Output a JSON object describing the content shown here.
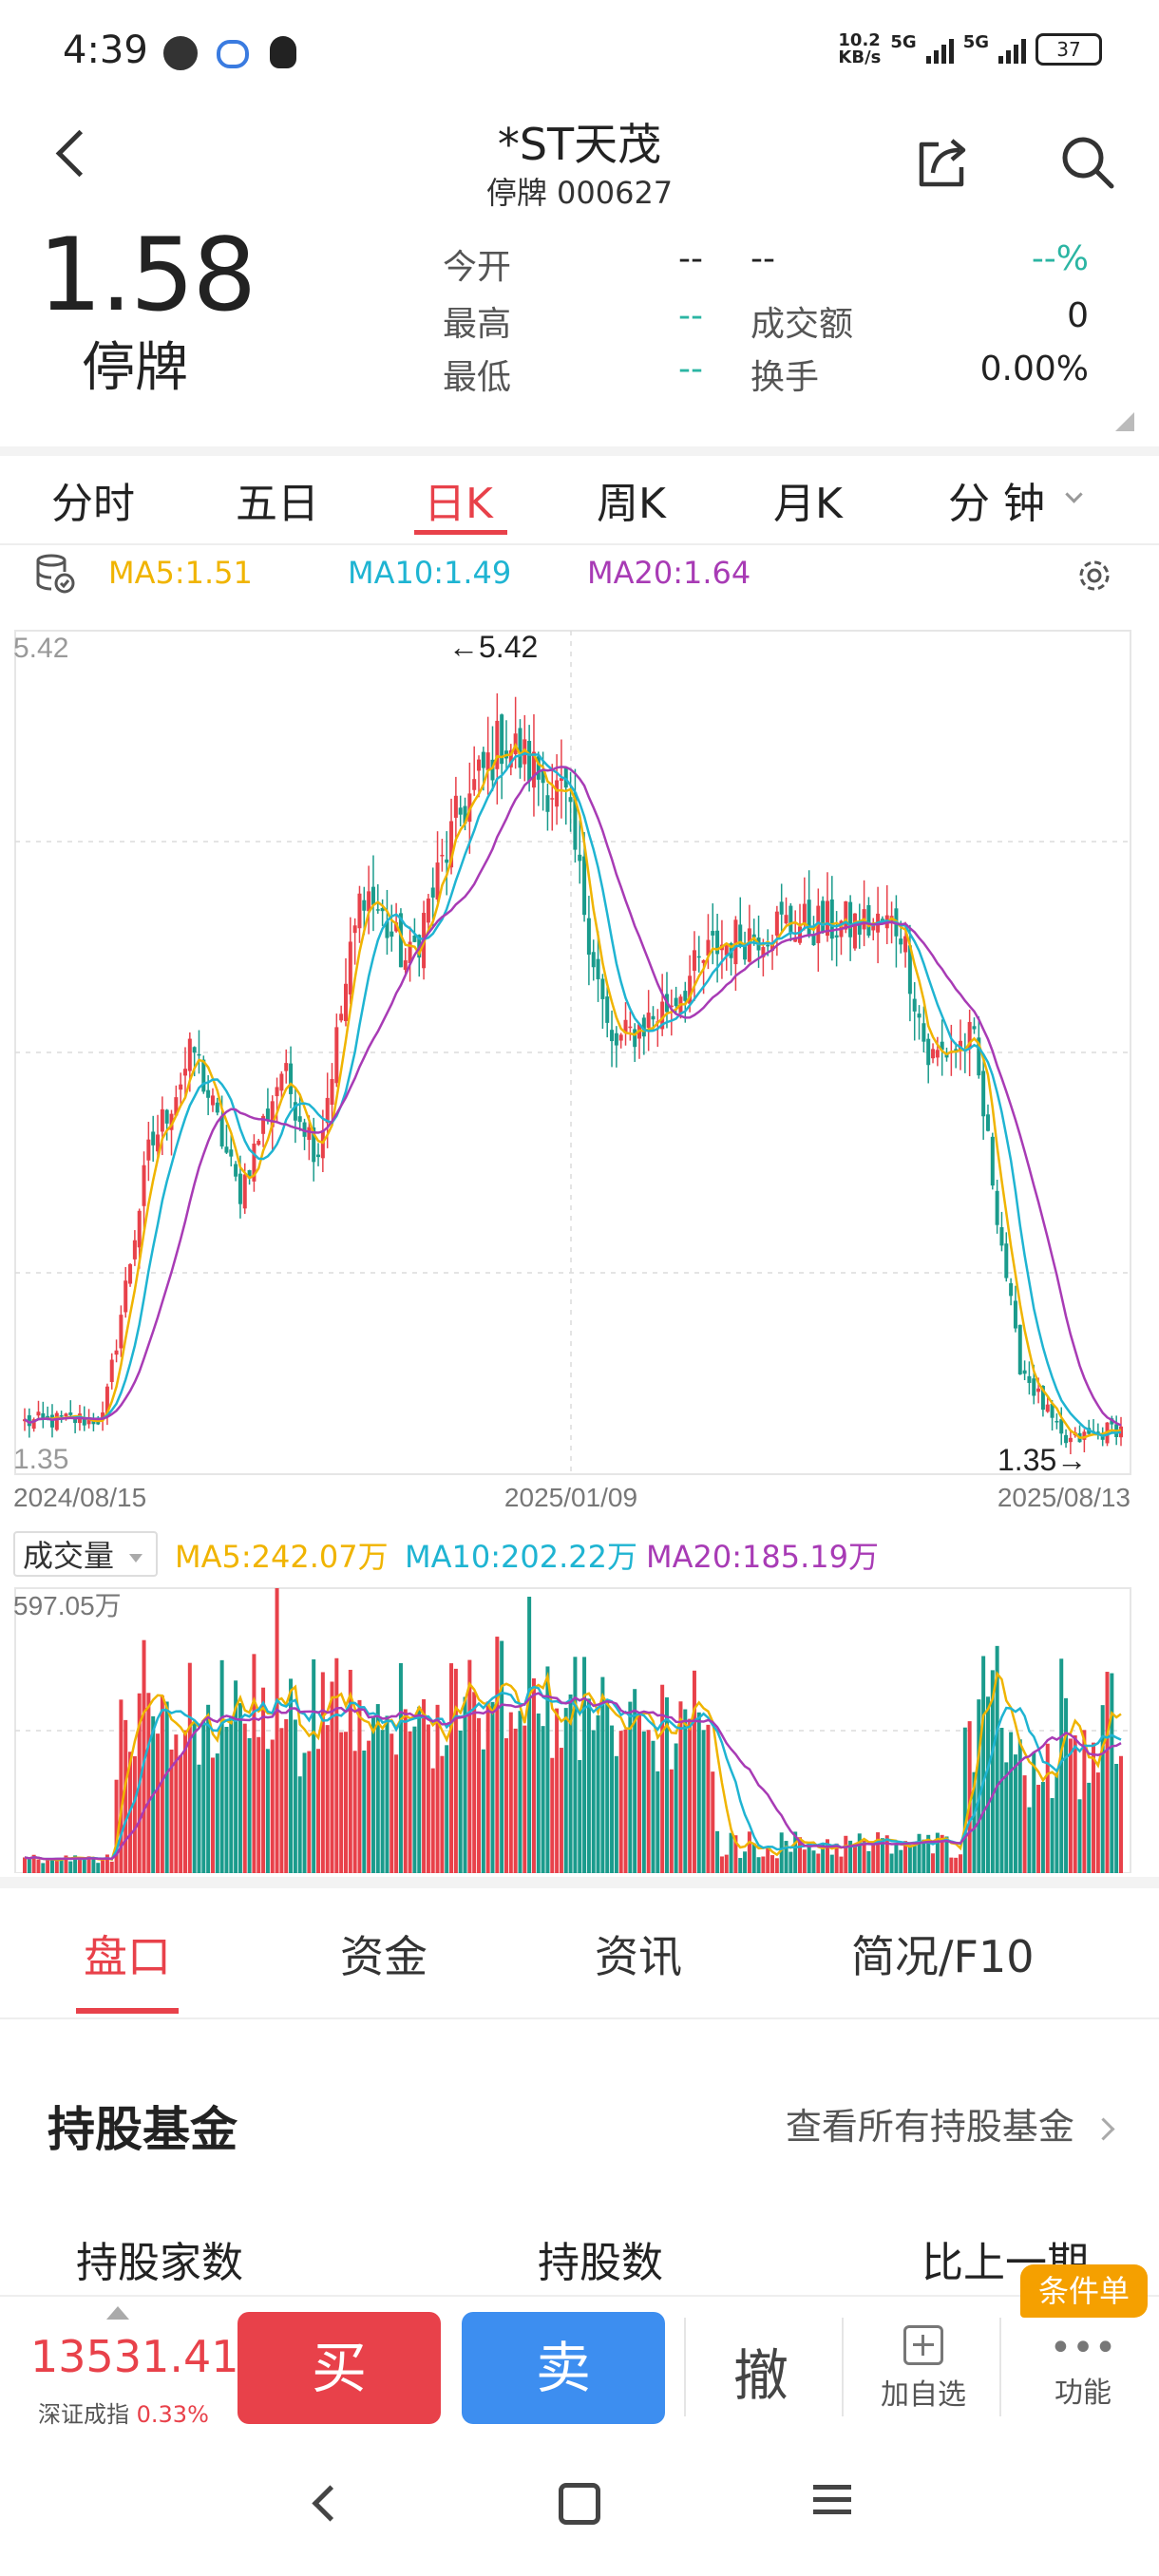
{
  "status_bar": {
    "time": "4:39",
    "speed": "10.2",
    "speed_unit": "KB/s",
    "net1": "5G",
    "net2": "5G",
    "battery": "37"
  },
  "header": {
    "name": "*ST天茂",
    "status_code": "停牌 000627"
  },
  "quote": {
    "price": "1.58",
    "status": "停牌",
    "rows": [
      {
        "label1": "今开",
        "val1": "--",
        "label2": "--",
        "val2": "--%"
      },
      {
        "label1": "最高",
        "val1": "--",
        "label2": "成交额",
        "val2": "0"
      },
      {
        "label1": "最低",
        "val1": "--",
        "label2": "换手",
        "val2": "0.00%"
      }
    ]
  },
  "kline_tabs": [
    "分时",
    "五日",
    "日K",
    "周K",
    "月K",
    "分 钟"
  ],
  "active_tab": "日K",
  "ma_legend": {
    "ma5": "MA5:1.51",
    "ma10": "MA10:1.49",
    "ma20": "MA20:1.64"
  },
  "colors": {
    "up": "#e8414a",
    "down": "#1a9b8c",
    "ma5": "#f0b400",
    "ma10": "#1fb4d2",
    "ma20": "#a83bb5",
    "accent": "#e8414a",
    "sell": "#3d8ef0"
  },
  "volume_legend": {
    "label": "成交量",
    "ma5": "MA5:242.07万",
    "ma10": "MA10:202.22万",
    "ma20": "MA20:185.19万"
  },
  "chart_data": [
    {
      "type": "candlestick",
      "title": "",
      "y_axis_labels": {
        "top": "5.42",
        "bottom": "1.35"
      },
      "ylim": [
        1.35,
        5.42
      ],
      "x_tick_labels": [
        "2024/08/15",
        "2025/01/09",
        "2025/08/13"
      ],
      "annotations": {
        "high": "5.42",
        "low": "1.35"
      },
      "close_keypoints": [
        {
          "x": "2024/08/15",
          "y": 1.6
        },
        {
          "x": "2024/09/10",
          "y": 1.62
        },
        {
          "x": "2024/09/25",
          "y": 2.9
        },
        {
          "x": "2024/10/10",
          "y": 3.4
        },
        {
          "x": "2024/10/25",
          "y": 2.7
        },
        {
          "x": "2024/11/08",
          "y": 3.3
        },
        {
          "x": "2024/11/20",
          "y": 2.9
        },
        {
          "x": "2024/12/05",
          "y": 4.2
        },
        {
          "x": "2024/12/20",
          "y": 3.8
        },
        {
          "x": "2025/01/05",
          "y": 4.5
        },
        {
          "x": "2025/01/20",
          "y": 4.9
        },
        {
          "x": "2025/02/10",
          "y": 4.6
        },
        {
          "x": "2025/02/25",
          "y": 3.4
        },
        {
          "x": "2025/03/15",
          "y": 3.6
        },
        {
          "x": "2025/04/01",
          "y": 3.9
        },
        {
          "x": "2025/04/20",
          "y": 4.0
        },
        {
          "x": "2025/05/10",
          "y": 4.0
        },
        {
          "x": "2025/06/01",
          "y": 4.0
        },
        {
          "x": "2025/06/10",
          "y": 3.35
        },
        {
          "x": "2025/06/25",
          "y": 3.45
        },
        {
          "x": "2025/07/10",
          "y": 1.9
        },
        {
          "x": "2025/07/25",
          "y": 1.5
        },
        {
          "x": "2025/08/13",
          "y": 1.58
        }
      ],
      "series": [
        {
          "name": "MA5",
          "values": []
        },
        {
          "name": "MA10",
          "values": []
        },
        {
          "name": "MA20",
          "values": []
        }
      ]
    },
    {
      "type": "bar",
      "title": "",
      "y_axis_labels": {
        "top": "597.05万"
      },
      "ylim": [
        0,
        597.05
      ]
    }
  ],
  "bottom_tabs": [
    "盘口",
    "资金",
    "资讯",
    "简况/F10"
  ],
  "fund_section": {
    "title": "持股基金",
    "link": "查看所有持股基金",
    "col1": "持股家数",
    "col2": "持股数",
    "col3": "比上一期"
  },
  "trade_bar": {
    "index_value": "13531.41",
    "index_name": "深证成指",
    "index_change": "0.33%",
    "buy": "买",
    "sell": "卖",
    "cancel": "撤",
    "watch": "加自选",
    "badge": "条件单",
    "func": "功能"
  }
}
